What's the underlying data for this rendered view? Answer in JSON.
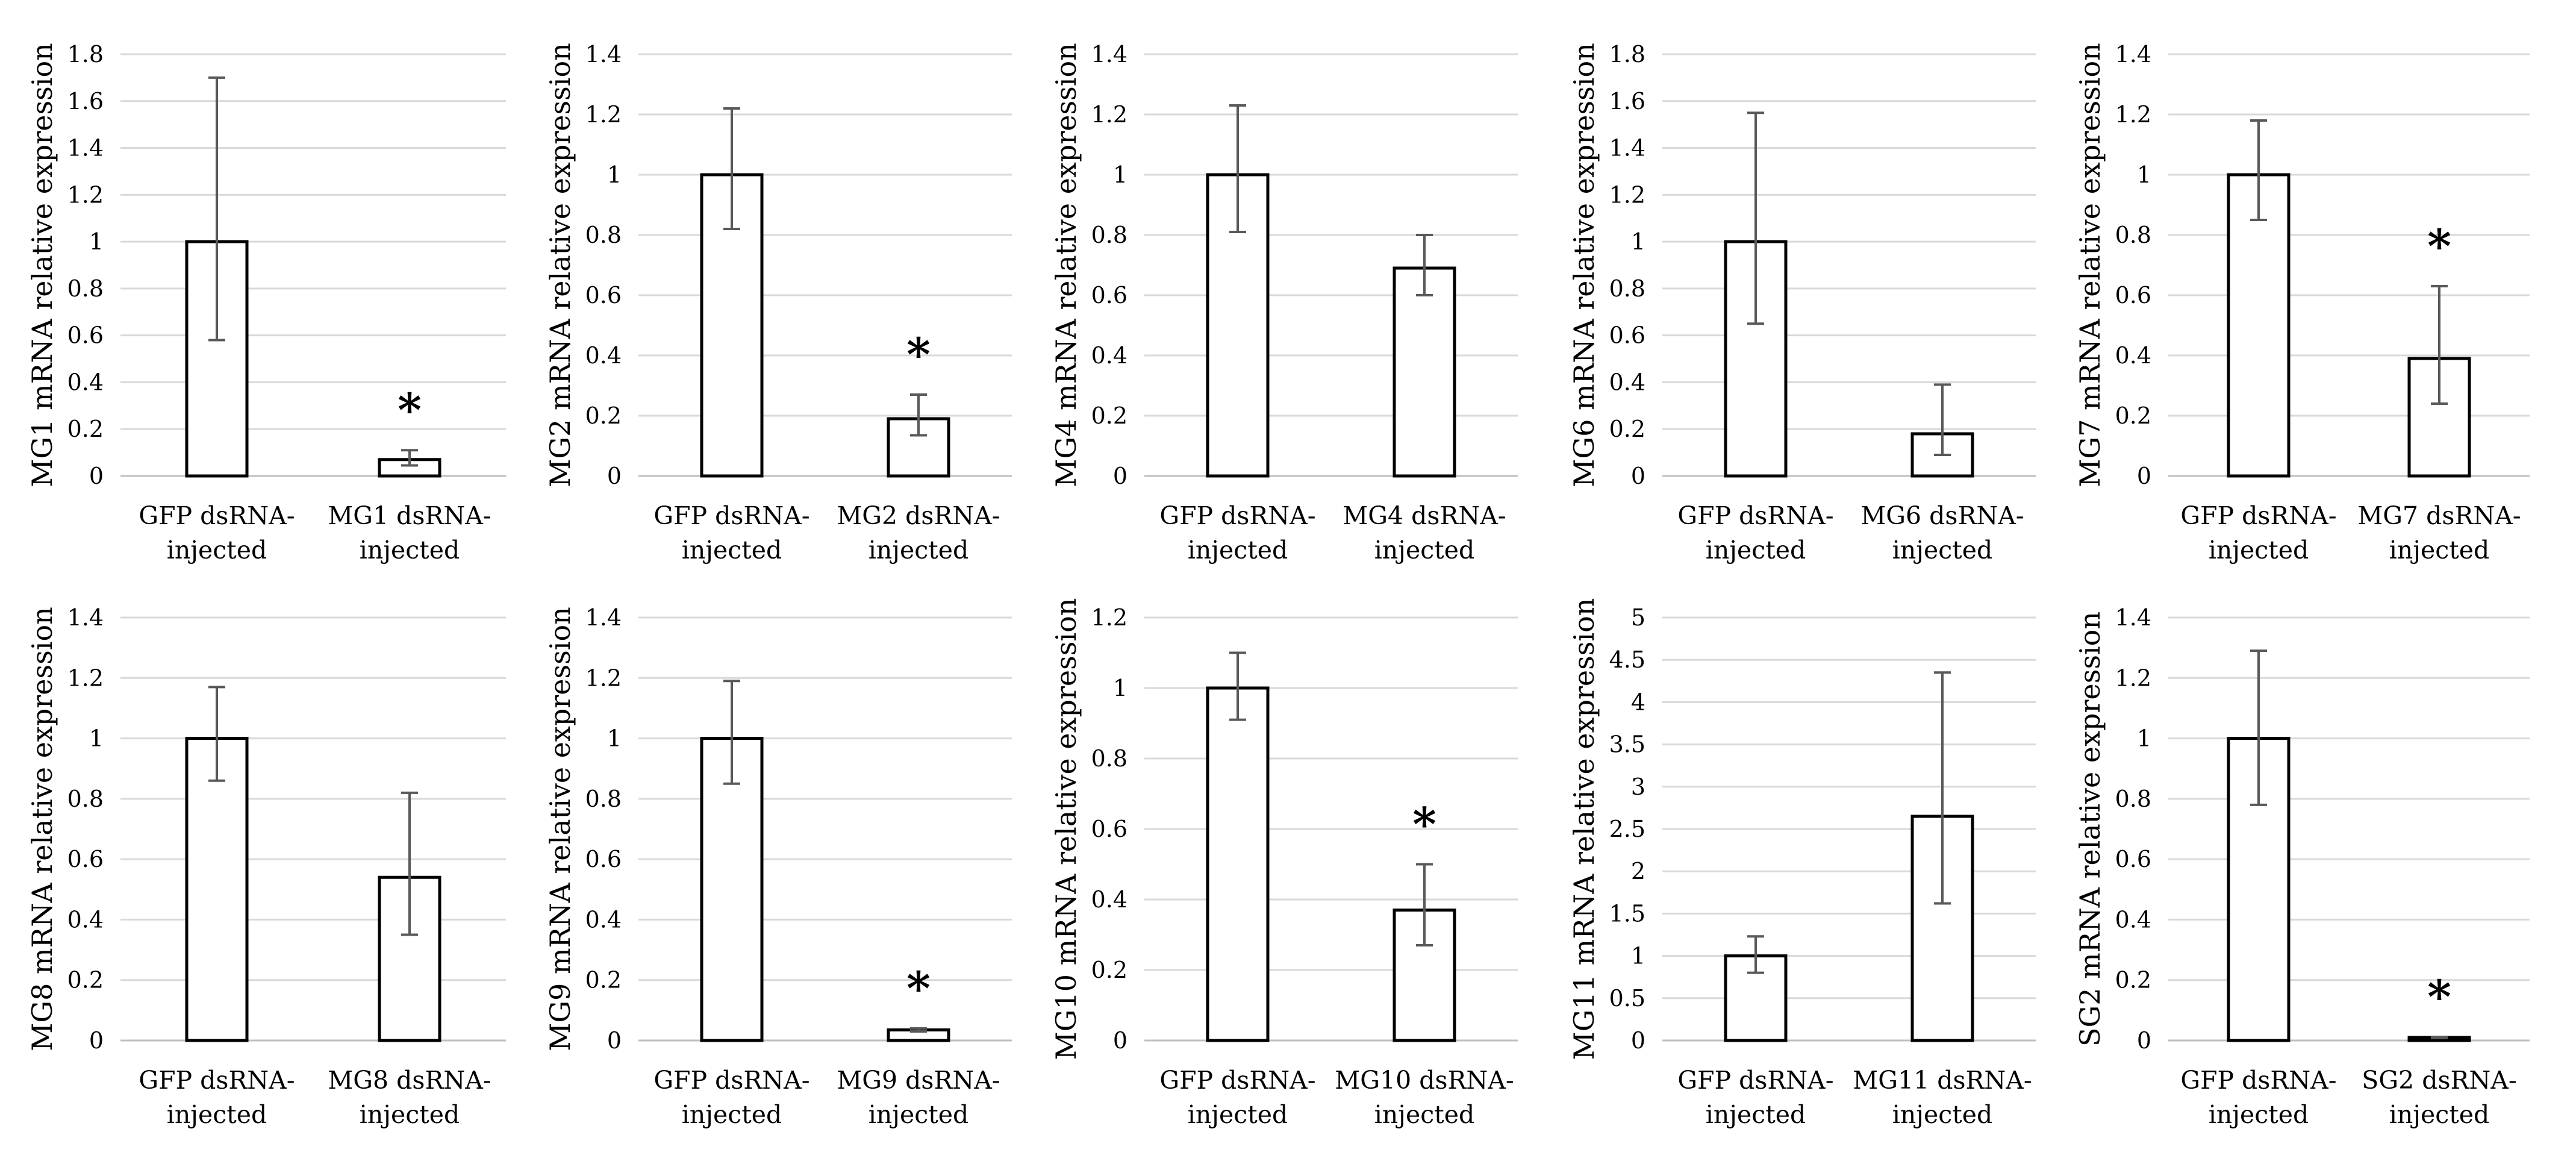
{
  "chart_data": [
    {
      "type": "bar",
      "ylabel": "MG1 mRNA relative expression",
      "ylim": [
        0,
        1.8
      ],
      "ticks": [
        "0",
        "0.2",
        "0.4",
        "0.6",
        "0.8",
        "1",
        "1.2",
        "1.4",
        "1.6",
        "1.8"
      ],
      "categories": [
        [
          "GFP dsRNA-",
          "injected"
        ],
        [
          "MG1 dsRNA-",
          "injected"
        ]
      ],
      "values": [
        1.0,
        0.07
      ],
      "err_low": [
        0.58,
        0.045
      ],
      "err_high": [
        1.7,
        0.11
      ],
      "significance": [
        "",
        "*"
      ]
    },
    {
      "type": "bar",
      "ylabel": "MG2 mRNA relative expression",
      "ylim": [
        0,
        1.4
      ],
      "ticks": [
        "0",
        "0.2",
        "0.4",
        "0.6",
        "0.8",
        "1",
        "1.2",
        "1.4"
      ],
      "categories": [
        [
          "GFP dsRNA-",
          "injected"
        ],
        [
          "MG2 dsRNA-",
          "injected"
        ]
      ],
      "values": [
        1.0,
        0.19
      ],
      "err_low": [
        0.82,
        0.135
      ],
      "err_high": [
        1.22,
        0.27
      ],
      "significance": [
        "",
        "*"
      ]
    },
    {
      "type": "bar",
      "ylabel": "MG4 mRNA relative expression",
      "ylim": [
        0,
        1.4
      ],
      "ticks": [
        "0",
        "0.2",
        "0.4",
        "0.6",
        "0.8",
        "1",
        "1.2",
        "1.4"
      ],
      "categories": [
        [
          "GFP dsRNA-",
          "injected"
        ],
        [
          "MG4 dsRNA-",
          "injected"
        ]
      ],
      "values": [
        1.0,
        0.69
      ],
      "err_low": [
        0.81,
        0.6
      ],
      "err_high": [
        1.23,
        0.8
      ],
      "significance": [
        "",
        ""
      ]
    },
    {
      "type": "bar",
      "ylabel": "MG6 mRNA relative expression",
      "ylim": [
        0,
        1.8
      ],
      "ticks": [
        "0",
        "0.2",
        "0.4",
        "0.6",
        "0.8",
        "1",
        "1.2",
        "1.4",
        "1.6",
        "1.8"
      ],
      "categories": [
        [
          "GFP dsRNA-",
          "injected"
        ],
        [
          "MG6 dsRNA-",
          "injected"
        ]
      ],
      "values": [
        1.0,
        0.18
      ],
      "err_low": [
        0.65,
        0.09
      ],
      "err_high": [
        1.55,
        0.39
      ],
      "significance": [
        "",
        ""
      ]
    },
    {
      "type": "bar",
      "ylabel": "MG7 mRNA relative expression",
      "ylim": [
        0,
        1.4
      ],
      "ticks": [
        "0",
        "0.2",
        "0.4",
        "0.6",
        "0.8",
        "1",
        "1.2",
        "1.4"
      ],
      "categories": [
        [
          "GFP dsRNA-",
          "injected"
        ],
        [
          "MG7 dsRNA-",
          "injected"
        ]
      ],
      "values": [
        1.0,
        0.39
      ],
      "err_low": [
        0.85,
        0.24
      ],
      "err_high": [
        1.18,
        0.63
      ],
      "significance": [
        "",
        "*"
      ]
    },
    {
      "type": "bar",
      "ylabel": "MG8 mRNA relative expression",
      "ylim": [
        0,
        1.4
      ],
      "ticks": [
        "0",
        "0.2",
        "0.4",
        "0.6",
        "0.8",
        "1",
        "1.2",
        "1.4"
      ],
      "categories": [
        [
          "GFP dsRNA-",
          "injected"
        ],
        [
          "MG8 dsRNA-",
          "injected"
        ]
      ],
      "values": [
        1.0,
        0.54
      ],
      "err_low": [
        0.86,
        0.35
      ],
      "err_high": [
        1.17,
        0.82
      ],
      "significance": [
        "",
        ""
      ]
    },
    {
      "type": "bar",
      "ylabel": "MG9 mRNA relative expression",
      "ylim": [
        0,
        1.4
      ],
      "ticks": [
        "0",
        "0.2",
        "0.4",
        "0.6",
        "0.8",
        "1",
        "1.2",
        "1.4"
      ],
      "categories": [
        [
          "GFP dsRNA-",
          "injected"
        ],
        [
          "MG9 dsRNA-",
          "injected"
        ]
      ],
      "values": [
        1.0,
        0.035
      ],
      "err_low": [
        0.85,
        0.03
      ],
      "err_high": [
        1.19,
        0.04
      ],
      "significance": [
        "",
        "*"
      ]
    },
    {
      "type": "bar",
      "ylabel": "MG10 mRNA relative expression",
      "ylim": [
        0,
        1.2
      ],
      "ticks": [
        "0",
        "0.2",
        "0.4",
        "0.6",
        "0.8",
        "1",
        "1.2"
      ],
      "categories": [
        [
          "GFP dsRNA-",
          "injected"
        ],
        [
          "MG10 dsRNA-",
          "injected"
        ]
      ],
      "values": [
        1.0,
        0.37
      ],
      "err_low": [
        0.91,
        0.27
      ],
      "err_high": [
        1.1,
        0.5
      ],
      "significance": [
        "",
        "*"
      ]
    },
    {
      "type": "bar",
      "ylabel": "MG11 mRNA relative expression",
      "ylim": [
        0,
        5
      ],
      "ticks": [
        "0",
        "0.5",
        "1",
        "1.5",
        "2",
        "2.5",
        "3",
        "3.5",
        "4",
        "4.5",
        "5"
      ],
      "categories": [
        [
          "GFP dsRNA-",
          "injected"
        ],
        [
          "MG11 dsRNA-",
          "injected"
        ]
      ],
      "values": [
        1.0,
        2.65
      ],
      "err_low": [
        0.8,
        1.62
      ],
      "err_high": [
        1.23,
        4.35
      ],
      "significance": [
        "",
        ""
      ]
    },
    {
      "type": "bar",
      "ylabel": "SG2 mRNA relative expression",
      "ylim": [
        0,
        1.4
      ],
      "ticks": [
        "0",
        "0.2",
        "0.4",
        "0.6",
        "0.8",
        "1",
        "1.2",
        "1.4"
      ],
      "categories": [
        [
          "GFP dsRNA-",
          "injected"
        ],
        [
          "SG2 dsRNA-",
          "injected"
        ]
      ],
      "values": [
        1.0,
        0.01
      ],
      "err_low": [
        0.78,
        0.008
      ],
      "err_high": [
        1.29,
        0.012
      ],
      "significance": [
        "",
        "*"
      ]
    }
  ]
}
